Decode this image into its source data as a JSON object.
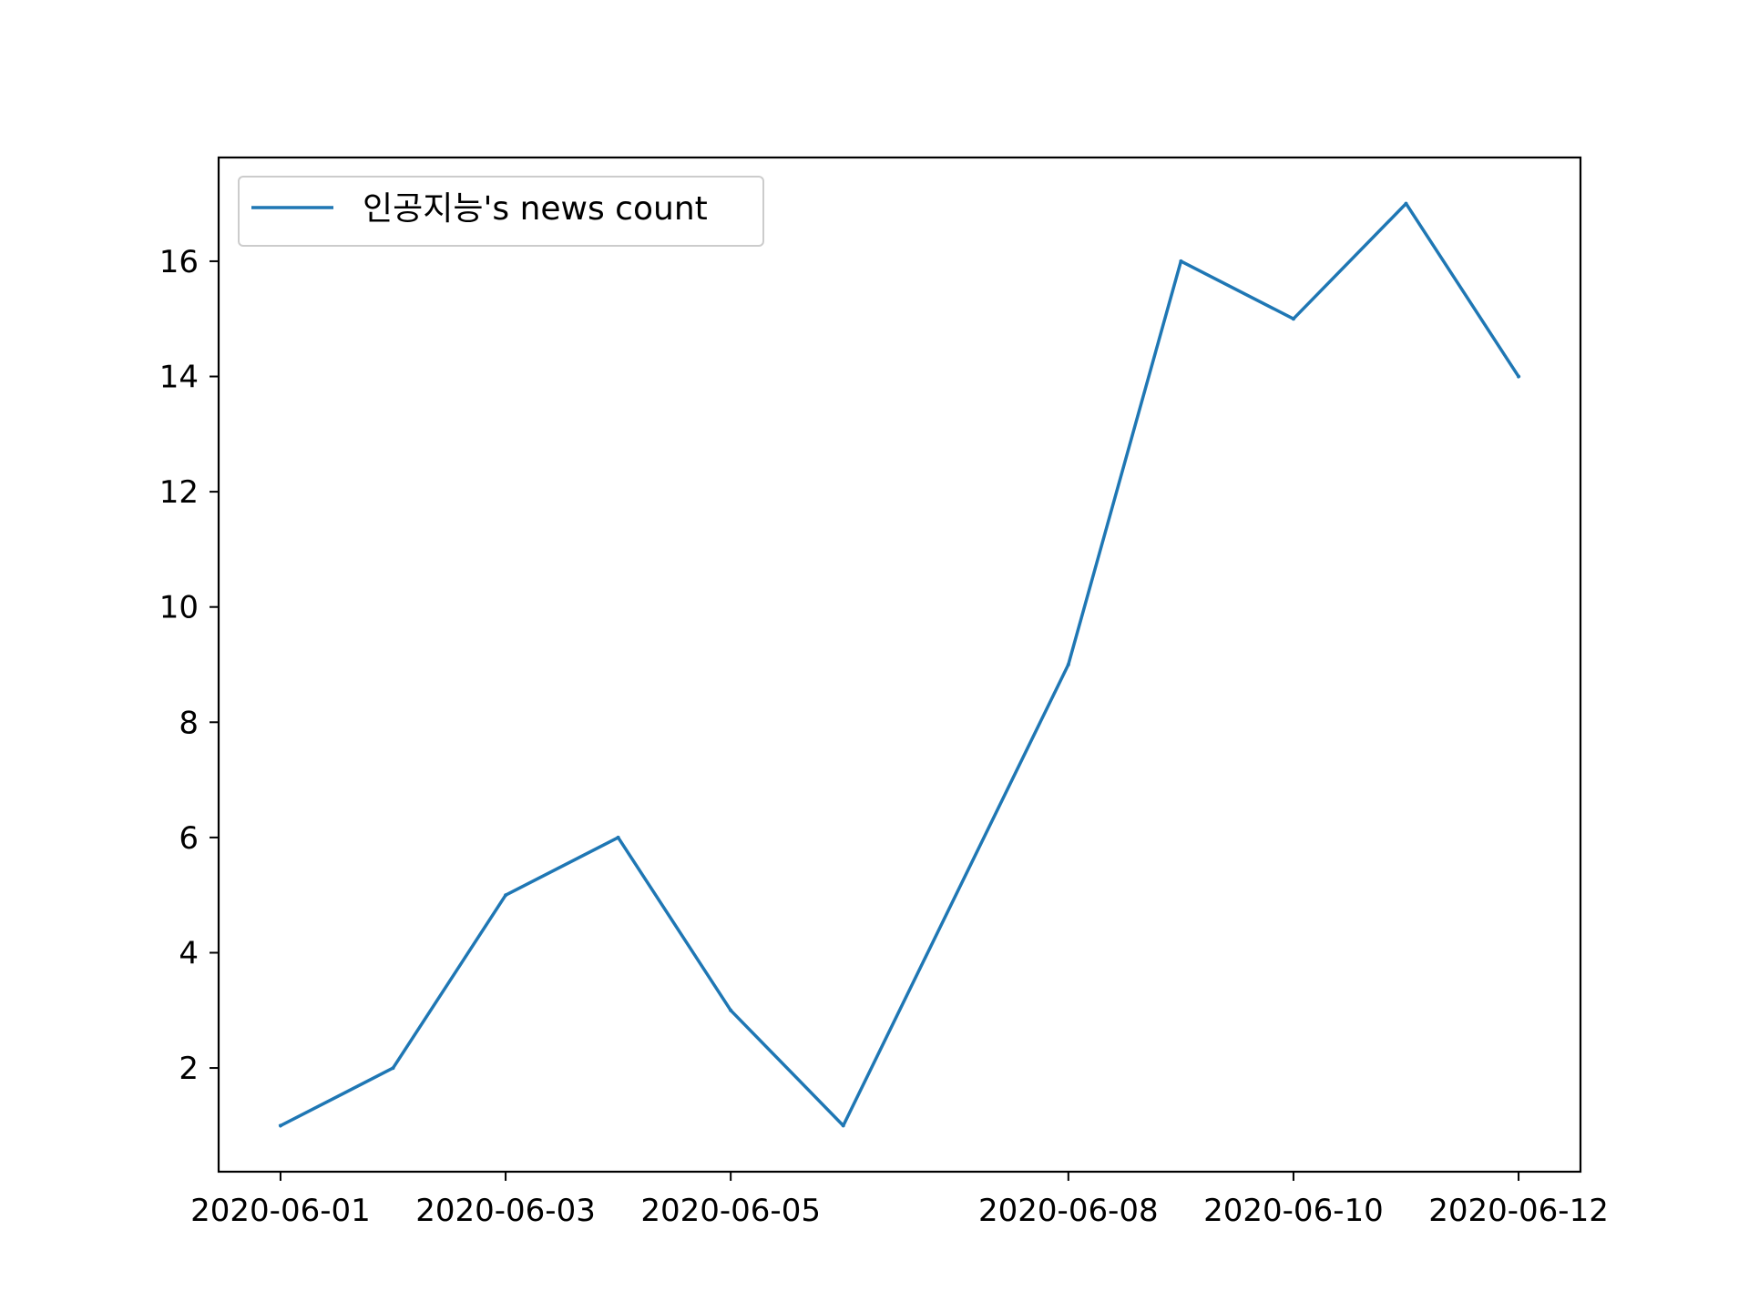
{
  "chart_data": {
    "type": "line",
    "title": "",
    "xlabel": "",
    "ylabel": "",
    "x": [
      "2020-06-01",
      "2020-06-02",
      "2020-06-03",
      "2020-06-04",
      "2020-06-05",
      "2020-06-06",
      "2020-06-08",
      "2020-06-09",
      "2020-06-10",
      "2020-06-11",
      "2020-06-12"
    ],
    "series": [
      {
        "name": "인공지능's news count",
        "color": "#1f77b4",
        "values": [
          1,
          2,
          5,
          6,
          3,
          1,
          9,
          16,
          15,
          17,
          14
        ]
      }
    ],
    "xticks": [
      "2020-06-01",
      "2020-06-03",
      "2020-06-05",
      "2020-06-08",
      "2020-06-10",
      "2020-06-12"
    ],
    "yticks": [
      2,
      4,
      6,
      8,
      10,
      12,
      14,
      16
    ],
    "ylim": [
      0.2,
      17.8
    ],
    "grid": false,
    "legend_position": "top-left"
  }
}
